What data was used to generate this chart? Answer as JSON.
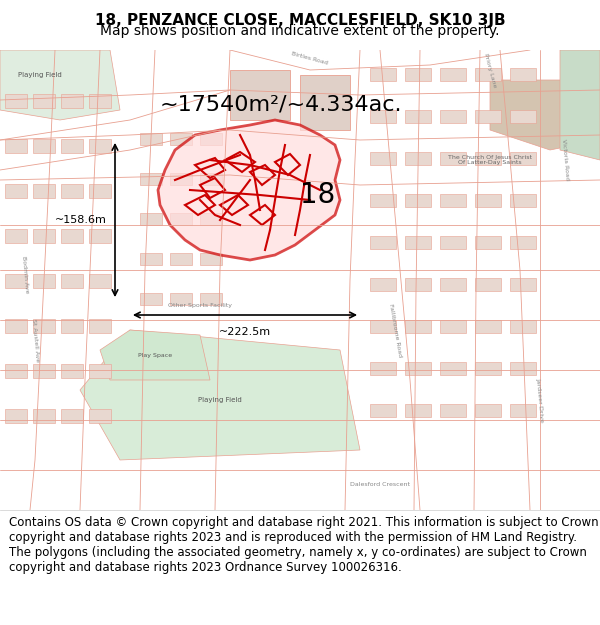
{
  "title_line1": "18, PENZANCE CLOSE, MACCLESFIELD, SK10 3JB",
  "title_line2": "Map shows position and indicative extent of the property.",
  "title_fontsize": 11,
  "subtitle_fontsize": 10,
  "footer_text": "Contains OS data © Crown copyright and database right 2021. This information is subject to Crown copyright and database rights 2023 and is reproduced with the permission of HM Land Registry. The polygons (including the associated geometry, namely x, y co-ordinates) are subject to Crown copyright and database rights 2023 Ordnance Survey 100026316.",
  "footer_fontsize": 8.5,
  "map_bg_color": "#f5ede8",
  "map_street_color": "#e8a090",
  "map_highlight_color": "#cc0000",
  "map_green_color": "#c8dcc8",
  "area_label": "~17540m²/~4.334ac.",
  "area_label_fontsize": 16,
  "width_label": "~222.5m",
  "height_label": "~158.6m",
  "number_label": "18",
  "number_fontsize": 20,
  "title_bg": "#ffffff",
  "footer_bg": "#ffffff",
  "map_border_color": "#888888",
  "fig_width": 6.0,
  "fig_height": 6.25,
  "dpi": 100
}
